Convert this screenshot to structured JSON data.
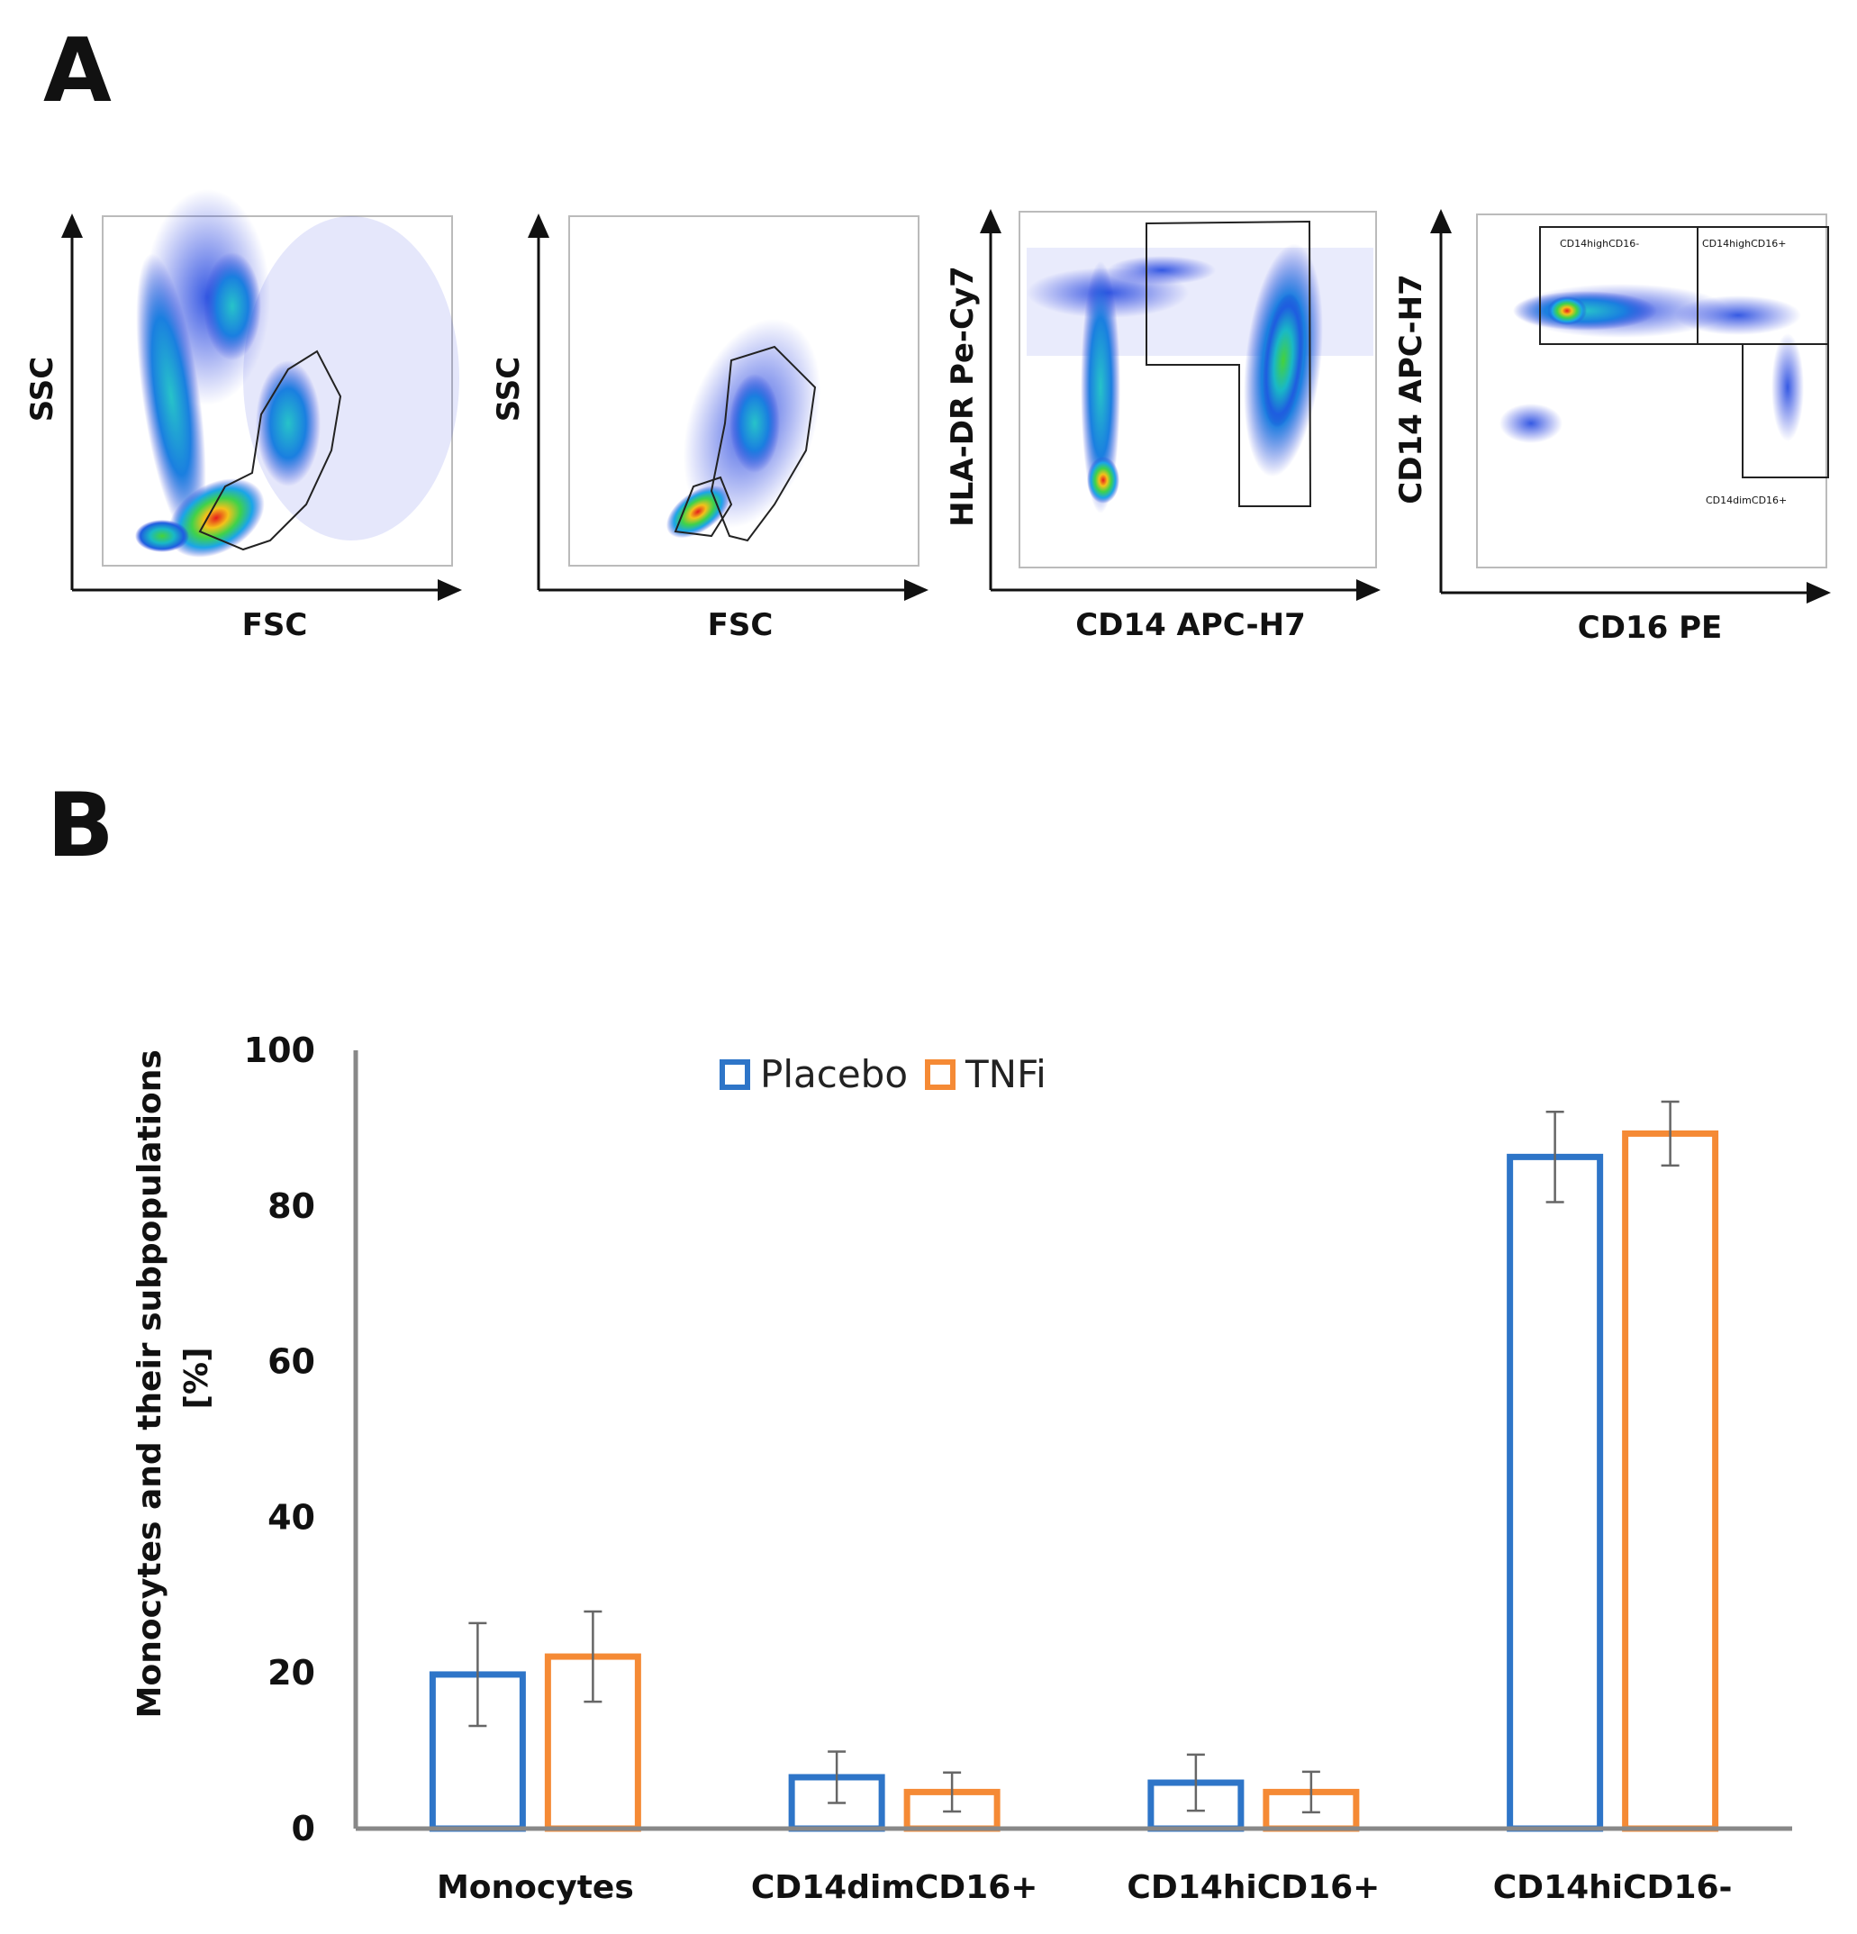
{
  "panel_a": {
    "letter": "A",
    "plots": [
      {
        "xlabel": "FSC",
        "ylabel": "SSC",
        "gates": []
      },
      {
        "xlabel": "FSC",
        "ylabel": "SSC",
        "gates": []
      },
      {
        "xlabel": "CD14 APC-H7",
        "ylabel": "HLA-DR Pe-Cy7",
        "gates": []
      },
      {
        "xlabel": "CD16 PE",
        "ylabel": "CD14 APC-H7",
        "gates": [
          "CD14highCD16-",
          "CD14highCD16+",
          "CD14dimCD16+"
        ]
      }
    ]
  },
  "panel_b": {
    "letter": "B"
  },
  "colors": {
    "placebo": "#2e75c8",
    "tnfi": "#f58a35",
    "axis": "#888888",
    "error": "#666666"
  },
  "chart_data": {
    "type": "bar",
    "title": "",
    "xlabel": "",
    "ylabel": "Monocytes and their subpopulations [%]",
    "ylabel_lines": [
      "Monocytes and their subpopulations",
      "[%]"
    ],
    "ylim": [
      0,
      100
    ],
    "yticks": [
      0,
      20,
      40,
      60,
      80,
      100
    ],
    "grid": false,
    "legend_position": "top-center",
    "categories": [
      "Monocytes",
      "CD14dimCD16+",
      "CD14hiCD16+",
      "CD14hiCD16-"
    ],
    "series": [
      {
        "name": "Placebo",
        "values": [
          19.8,
          6.6,
          5.9,
          86.3
        ],
        "errors": [
          6.6,
          3.3,
          3.6,
          5.8
        ]
      },
      {
        "name": "TNFi",
        "values": [
          22.1,
          4.7,
          4.7,
          89.3
        ],
        "errors": [
          5.8,
          2.5,
          2.6,
          4.1
        ]
      }
    ]
  }
}
